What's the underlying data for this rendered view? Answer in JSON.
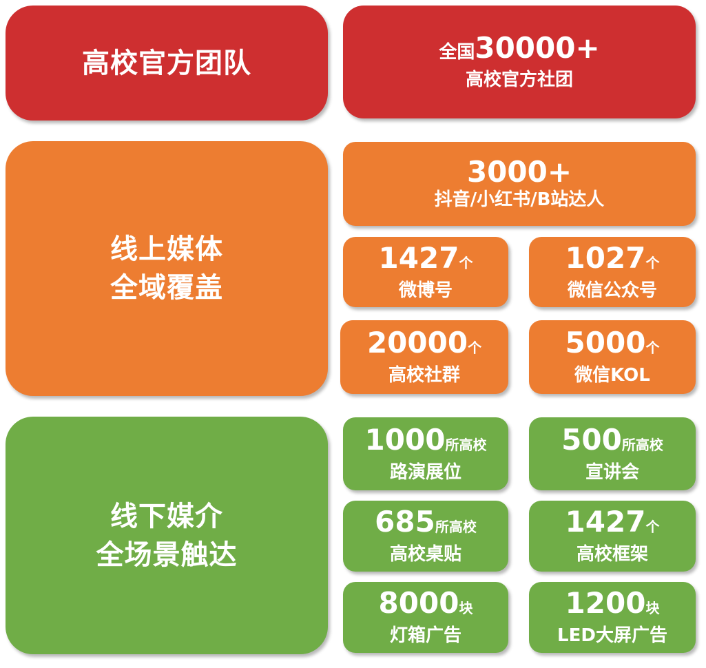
{
  "colors": {
    "red": "#CE2F30",
    "orange": "#ED7D31",
    "green": "#70AD47"
  },
  "team": {
    "title": "高校官方团队",
    "prefix": "全国",
    "number": "30000+",
    "label": "高校官方社团"
  },
  "online": {
    "title_line1": "线上媒体",
    "title_line2": "全域覆盖",
    "creators": {
      "number": "3000+",
      "label": "抖音/小红书/B站达人"
    },
    "items": [
      {
        "number": "1427",
        "unit": "个",
        "label": "微博号"
      },
      {
        "number": "1027",
        "unit": "个",
        "label": "微信公众号"
      },
      {
        "number": "20000",
        "unit": "个",
        "label": "高校社群"
      },
      {
        "number": "5000",
        "unit": "个",
        "label": "微信KOL"
      }
    ]
  },
  "offline": {
    "title_line1": "线下媒介",
    "title_line2": "全场景触达",
    "items": [
      {
        "number": "1000",
        "unit": "所高校",
        "label": "路演展位"
      },
      {
        "number": "500",
        "unit": "所高校",
        "label": "宣讲会"
      },
      {
        "number": "685",
        "unit": "所高校",
        "label": "高校桌贴"
      },
      {
        "number": "1427",
        "unit": "个",
        "label": "高校框架"
      },
      {
        "number": "8000",
        "unit": "块",
        "label": "灯箱广告"
      },
      {
        "number": "1200",
        "unit": "块",
        "label": "LED大屏广告"
      }
    ]
  }
}
